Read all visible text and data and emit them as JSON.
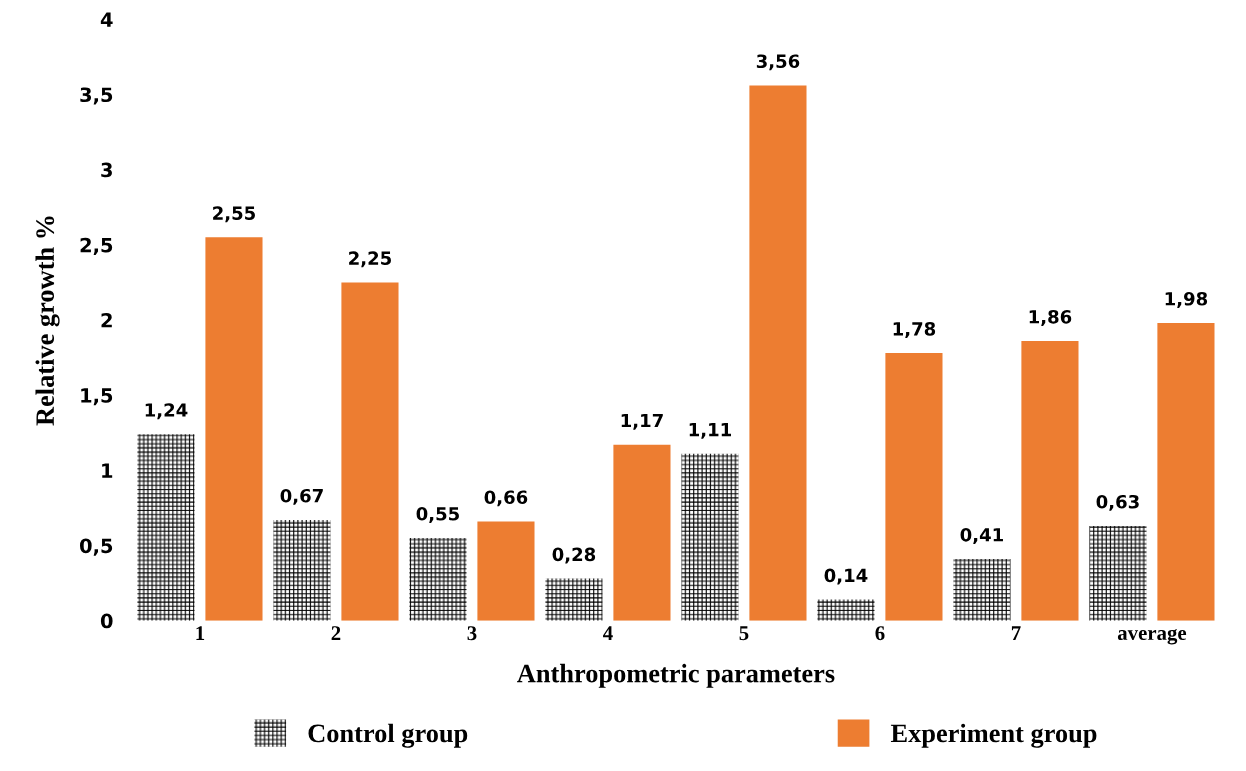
{
  "chart_data": {
    "type": "bar",
    "xlabel": "Anthropometric parameters",
    "ylabel": "Relative growth %",
    "categories": [
      "1",
      "2",
      "3",
      "4",
      "5",
      "6",
      "7",
      "average"
    ],
    "series": [
      {
        "name": "Control group",
        "color": "#ffffff",
        "values": [
          1.24,
          0.67,
          0.55,
          0.28,
          1.11,
          0.14,
          0.41,
          0.63
        ],
        "value_labels": [
          "1,24",
          "0,67",
          "0,55",
          "0,28",
          "1,11",
          "0,14",
          "0,41",
          "0,63"
        ]
      },
      {
        "name": "Experiment group",
        "color": "#ed7d31",
        "values": [
          2.55,
          2.25,
          0.66,
          1.17,
          3.56,
          1.78,
          1.86,
          1.98
        ],
        "value_labels": [
          "2,55",
          "2,25",
          "0,66",
          "1,17",
          "3,56",
          "1,78",
          "1,86",
          "1,98"
        ]
      }
    ],
    "ylim": [
      0,
      4
    ],
    "yticks": [
      0,
      {
        "value": 0.5,
        "label": "0,5"
      },
      1,
      {
        "value": 1.5,
        "label": "1,5"
      },
      2,
      {
        "value": 2.5,
        "label": "2,5"
      },
      3,
      {
        "value": 3.5,
        "label": "3,5"
      },
      4
    ],
    "grid": false,
    "legend": "bottom"
  }
}
